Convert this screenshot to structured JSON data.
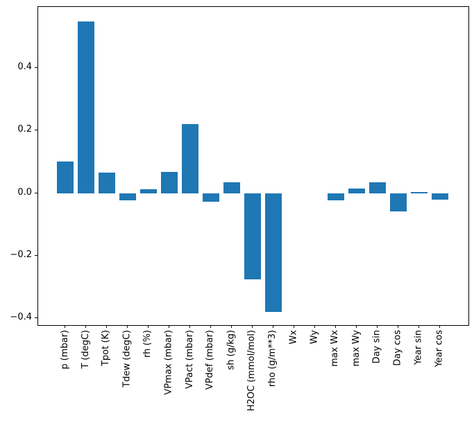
{
  "chart_data": {
    "type": "bar",
    "title": "",
    "xlabel": "",
    "ylabel": "",
    "grid": false,
    "legend": "none",
    "bar_color": "#1f77b4",
    "categories": [
      "p (mbar)",
      "T (degC)",
      "Tpot (K)",
      "Tdew (degC)",
      "rh (%)",
      "VPmax (mbar)",
      "VPact (mbar)",
      "VPdef (mbar)",
      "sh (g/kg)",
      "H2OC (mmol/mol)",
      "rho (g/m**3)",
      "Wx",
      "Wy",
      "max Wx",
      "max Wy",
      "Day sin",
      "Day cos",
      "Year sin",
      "Year cos"
    ],
    "values": [
      0.1,
      0.548,
      0.065,
      -0.023,
      0.013,
      0.068,
      0.22,
      -0.028,
      0.034,
      -0.275,
      -0.381,
      0.0,
      0.0,
      -0.023,
      0.015,
      0.034,
      -0.059,
      0.004,
      -0.022
    ],
    "yticks": [
      0.4,
      0.2,
      0.0,
      -0.2,
      -0.4
    ],
    "ytick_labels": [
      "0.4",
      "0.2",
      "0.0",
      "−0.2",
      "−0.4"
    ],
    "ylim": [
      -0.422,
      0.595
    ]
  }
}
